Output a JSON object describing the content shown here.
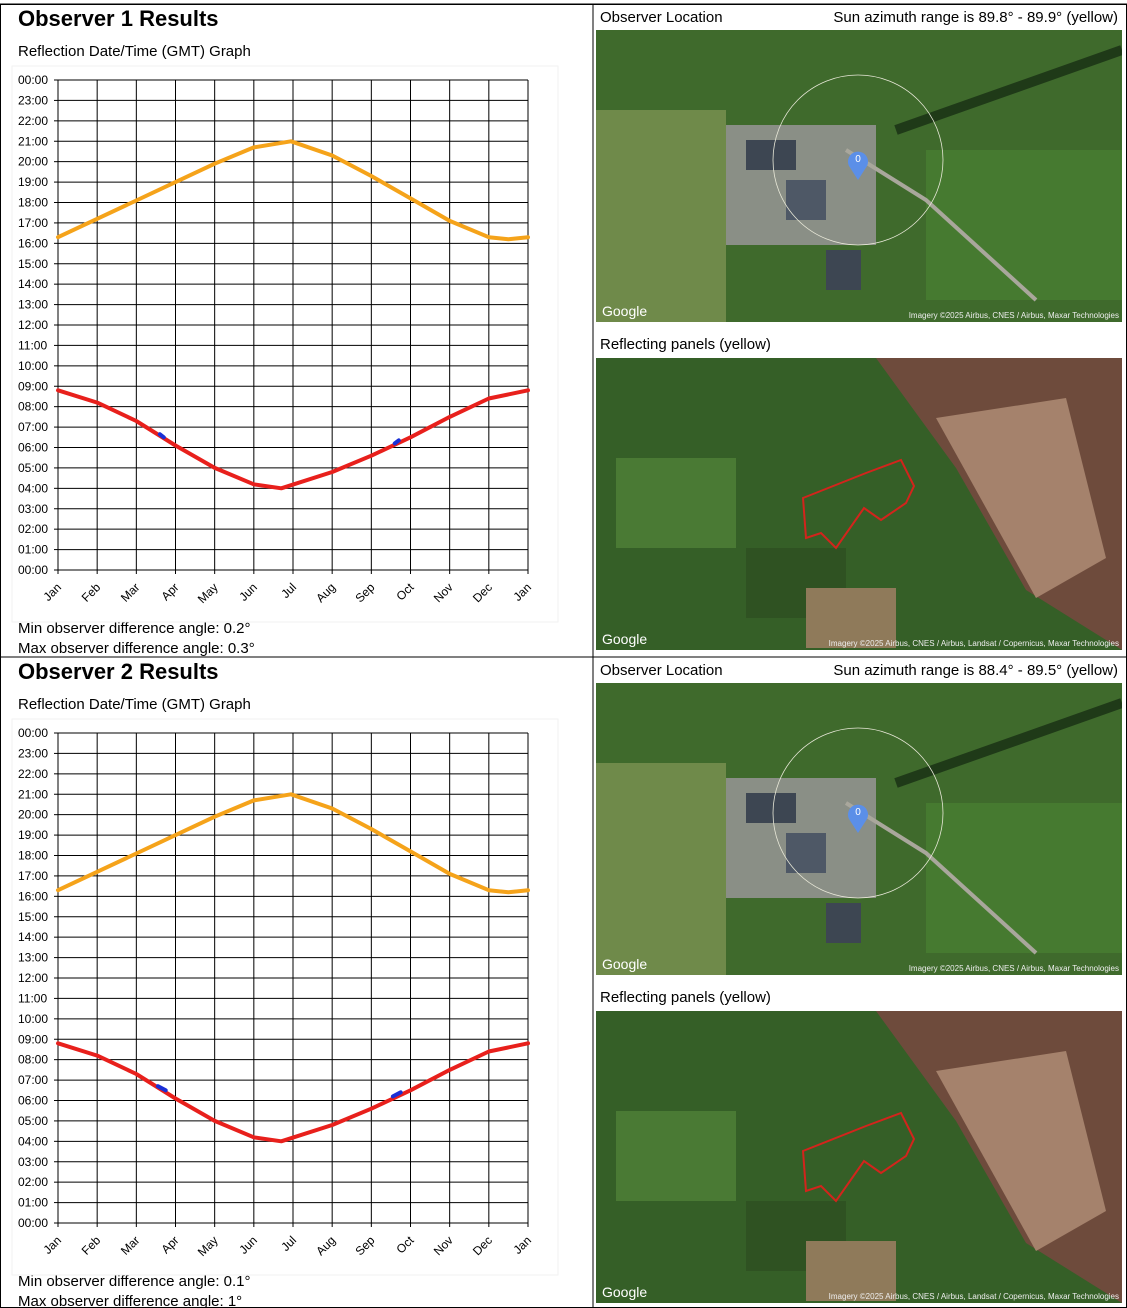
{
  "chart_data": [
    {
      "type": "line",
      "xlim": [
        0,
        12
      ],
      "xticks": [
        {
          "value": 0,
          "label": "Jan"
        },
        {
          "value": 1,
          "label": "Feb"
        },
        {
          "value": 2,
          "label": "Mar"
        },
        {
          "value": 3,
          "label": "Apr"
        },
        {
          "value": 4,
          "label": "May"
        },
        {
          "value": 5,
          "label": "Jun"
        },
        {
          "value": 6,
          "label": "Jul"
        },
        {
          "value": 7,
          "label": "Aug"
        },
        {
          "value": 8,
          "label": "Sep"
        },
        {
          "value": 9,
          "label": "Oct"
        },
        {
          "value": 10,
          "label": "Nov"
        },
        {
          "value": 11,
          "label": "Dec"
        },
        {
          "value": 12,
          "label": "Jan"
        }
      ],
      "ylim": [
        0,
        24
      ],
      "yticks": [
        {
          "value": 0,
          "label": "00:00"
        },
        {
          "value": 1,
          "label": "01:00"
        },
        {
          "value": 2,
          "label": "02:00"
        },
        {
          "value": 3,
          "label": "03:00"
        },
        {
          "value": 4,
          "label": "04:00"
        },
        {
          "value": 5,
          "label": "05:00"
        },
        {
          "value": 6,
          "label": "06:00"
        },
        {
          "value": 7,
          "label": "07:00"
        },
        {
          "value": 8,
          "label": "08:00"
        },
        {
          "value": 9,
          "label": "09:00"
        },
        {
          "value": 10,
          "label": "10:00"
        },
        {
          "value": 11,
          "label": "11:00"
        },
        {
          "value": 12,
          "label": "12:00"
        },
        {
          "value": 13,
          "label": "13:00"
        },
        {
          "value": 14,
          "label": "14:00"
        },
        {
          "value": 15,
          "label": "15:00"
        },
        {
          "value": 16,
          "label": "16:00"
        },
        {
          "value": 17,
          "label": "17:00"
        },
        {
          "value": 18,
          "label": "18:00"
        },
        {
          "value": 19,
          "label": "19:00"
        },
        {
          "value": 20,
          "label": "20:00"
        },
        {
          "value": 21,
          "label": "21:00"
        },
        {
          "value": 22,
          "label": "22:00"
        },
        {
          "value": 23,
          "label": "23:00"
        },
        {
          "value": 24,
          "label": "00:00"
        }
      ],
      "grid": true,
      "series": [
        {
          "color": "#f5a31a",
          "x": [
            0,
            1,
            2,
            3,
            4,
            5,
            5.95,
            7,
            8,
            9,
            10,
            11,
            11.5,
            12
          ],
          "values": [
            16.3,
            17.2,
            18.1,
            19.0,
            19.9,
            20.7,
            21.0,
            20.3,
            19.3,
            18.2,
            17.1,
            16.3,
            16.2,
            16.3
          ]
        },
        {
          "color": "#e8201c",
          "x": [
            0,
            1,
            2,
            3,
            4,
            5,
            5.7,
            7,
            8,
            9,
            10,
            11,
            12
          ],
          "values": [
            8.8,
            8.2,
            7.3,
            6.1,
            5.0,
            4.2,
            4.0,
            4.8,
            5.6,
            6.5,
            7.5,
            8.4,
            8.8
          ]
        },
        {
          "color": "#1a2fd6",
          "x": [
            2.6,
            2.7,
            5,
            8.6,
            8.7
          ],
          "values": [
            6.65,
            6.5,
            null,
            6.2,
            6.35
          ]
        }
      ]
    },
    {
      "type": "line",
      "xlim": [
        0,
        12
      ],
      "xticks": [
        {
          "value": 0,
          "label": "Jan"
        },
        {
          "value": 1,
          "label": "Feb"
        },
        {
          "value": 2,
          "label": "Mar"
        },
        {
          "value": 3,
          "label": "Apr"
        },
        {
          "value": 4,
          "label": "May"
        },
        {
          "value": 5,
          "label": "Jun"
        },
        {
          "value": 6,
          "label": "Jul"
        },
        {
          "value": 7,
          "label": "Aug"
        },
        {
          "value": 8,
          "label": "Sep"
        },
        {
          "value": 9,
          "label": "Oct"
        },
        {
          "value": 10,
          "label": "Nov"
        },
        {
          "value": 11,
          "label": "Dec"
        },
        {
          "value": 12,
          "label": "Jan"
        }
      ],
      "ylim": [
        0,
        24
      ],
      "yticks": [
        {
          "value": 0,
          "label": "00:00"
        },
        {
          "value": 1,
          "label": "01:00"
        },
        {
          "value": 2,
          "label": "02:00"
        },
        {
          "value": 3,
          "label": "03:00"
        },
        {
          "value": 4,
          "label": "04:00"
        },
        {
          "value": 5,
          "label": "05:00"
        },
        {
          "value": 6,
          "label": "06:00"
        },
        {
          "value": 7,
          "label": "07:00"
        },
        {
          "value": 8,
          "label": "08:00"
        },
        {
          "value": 9,
          "label": "09:00"
        },
        {
          "value": 10,
          "label": "10:00"
        },
        {
          "value": 11,
          "label": "11:00"
        },
        {
          "value": 12,
          "label": "12:00"
        },
        {
          "value": 13,
          "label": "13:00"
        },
        {
          "value": 14,
          "label": "14:00"
        },
        {
          "value": 15,
          "label": "15:00"
        },
        {
          "value": 16,
          "label": "16:00"
        },
        {
          "value": 17,
          "label": "17:00"
        },
        {
          "value": 18,
          "label": "18:00"
        },
        {
          "value": 19,
          "label": "19:00"
        },
        {
          "value": 20,
          "label": "20:00"
        },
        {
          "value": 21,
          "label": "21:00"
        },
        {
          "value": 22,
          "label": "22:00"
        },
        {
          "value": 23,
          "label": "23:00"
        },
        {
          "value": 24,
          "label": "00:00"
        }
      ],
      "grid": true,
      "series": [
        {
          "color": "#f5a31a",
          "x": [
            0,
            1,
            2,
            3,
            4,
            5,
            5.95,
            7,
            8,
            9,
            10,
            11,
            11.5,
            12
          ],
          "values": [
            16.3,
            17.2,
            18.1,
            19.0,
            19.9,
            20.7,
            21.0,
            20.3,
            19.3,
            18.2,
            17.1,
            16.3,
            16.2,
            16.3
          ]
        },
        {
          "color": "#e8201c",
          "x": [
            0,
            1,
            2,
            3,
            4,
            5,
            5.7,
            7,
            8,
            9,
            10,
            11,
            12
          ],
          "values": [
            8.8,
            8.2,
            7.3,
            6.1,
            5.0,
            4.2,
            4.0,
            4.8,
            5.6,
            6.5,
            7.5,
            8.4,
            8.8
          ]
        },
        {
          "color": "#1a2fd6",
          "x": [
            2.55,
            2.75,
            5,
            8.55,
            8.75
          ],
          "values": [
            6.7,
            6.5,
            null,
            6.2,
            6.4
          ]
        }
      ]
    }
  ],
  "sections": [
    {
      "title": "Observer 1 Results",
      "graph_title": "Reflection Date/Time (GMT) Graph",
      "min_angle": "Min observer difference angle: 0.2°",
      "max_angle": "Max observer difference angle: 0.3°",
      "location_label": "Observer Location",
      "azimuth": "Sun azimuth range is 89.8° - 89.9° (yellow)",
      "pin_label": "0",
      "location_map": {
        "logo": "Google",
        "credit": "Imagery ©2025 Airbus, CNES / Airbus, Maxar Technologies"
      },
      "panels_label": "Reflecting panels (yellow)",
      "panels_map": {
        "logo": "Google",
        "credit": "Imagery ©2025 Airbus, CNES / Airbus, Landsat / Copernicus, Maxar Technologies"
      }
    },
    {
      "title": "Observer 2 Results",
      "graph_title": "Reflection Date/Time (GMT) Graph",
      "min_angle": "Min observer difference angle: 0.1°",
      "max_angle": "Max observer difference angle: 1°",
      "location_label": "Observer Location",
      "azimuth": "Sun azimuth range is 88.4° - 89.5° (yellow)",
      "pin_label": "0",
      "location_map": {
        "logo": "Google",
        "credit": "Imagery ©2025 Airbus, CNES / Airbus, Maxar Technologies"
      },
      "panels_label": "Reflecting panels (yellow)",
      "panels_map": {
        "logo": "Google",
        "credit": "Imagery ©2025 Airbus, CNES / Airbus, Landsat / Copernicus, Maxar Technologies"
      }
    }
  ]
}
